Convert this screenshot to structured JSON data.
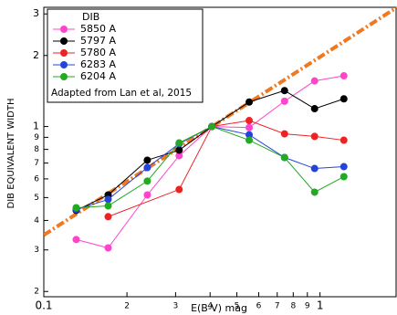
{
  "chart_data": {
    "type": "line",
    "x_label": "E(B-V) mag",
    "y_label": "DIB EQUIVALENT WIDTH",
    "log_x": true,
    "log_y": true,
    "xlim": [
      0.1,
      1.9
    ],
    "ylim": [
      0.19,
      3.2
    ],
    "xticks": [
      0.1,
      {
        "value": 0.2,
        "label": "2"
      },
      {
        "value": 0.3,
        "label": "3"
      },
      {
        "value": 0.4,
        "label": "4"
      },
      {
        "value": 0.5,
        "label": "5"
      },
      {
        "value": 0.6,
        "label": "6"
      },
      {
        "value": 0.7,
        "label": "7"
      },
      {
        "value": 0.8,
        "label": "8"
      },
      {
        "value": 0.9,
        "label": "9"
      },
      1
    ],
    "yticks": [
      3,
      2,
      1,
      {
        "value": 0.9,
        "label": "9"
      },
      {
        "value": 0.8,
        "label": "8"
      },
      {
        "value": 0.7,
        "label": "7"
      },
      {
        "value": 0.6,
        "label": "6"
      },
      {
        "value": 0.5,
        "label": "5"
      },
      {
        "value": 0.4,
        "label": "4"
      },
      {
        "value": 0.3,
        "label": "3"
      },
      {
        "value": 0.2,
        "label": "2"
      }
    ],
    "legend_title": "DIB",
    "legend_note": "Adapted from Lan et al, 2015",
    "legend_position": "upper left",
    "series": [
      {
        "name": "5850 A",
        "color": "#ff44cc",
        "x": [
          0.131,
          0.171,
          0.237,
          0.309,
          0.406,
          0.554,
          0.744,
          0.956,
          1.22
        ],
        "values": [
          0.332,
          0.306,
          0.513,
          0.752,
          1,
          0.99,
          1.28,
          1.56,
          1.64
        ]
      },
      {
        "name": "5797 A",
        "color": "#000000",
        "x": [
          0.131,
          0.171,
          0.237,
          0.309,
          0.406,
          0.554,
          0.744,
          0.956,
          1.22
        ],
        "values": [
          0.441,
          0.513,
          0.72,
          0.794,
          1,
          1.27,
          1.42,
          1.19,
          1.31
        ]
      },
      {
        "name": "5780 A",
        "color": "#ee2222",
        "x": [
          0.171,
          0.309,
          0.406,
          0.554,
          0.744,
          0.956,
          1.22
        ],
        "values": [
          0.415,
          0.541,
          1,
          1.06,
          0.931,
          0.908,
          0.875
        ]
      },
      {
        "name": "6283 A",
        "color": "#2244dd",
        "x": [
          0.131,
          0.171,
          0.237,
          0.309,
          0.406,
          0.554,
          0.744,
          0.956,
          1.22
        ],
        "values": [
          0.445,
          0.491,
          0.67,
          0.845,
          1,
          0.923,
          0.739,
          0.664,
          0.676
        ]
      },
      {
        "name": "6204 A",
        "color": "#22aa22",
        "x": [
          0.131,
          0.171,
          0.237,
          0.309,
          0.406,
          0.554,
          0.744,
          0.956,
          1.22
        ],
        "values": [
          0.453,
          0.461,
          0.587,
          0.852,
          1,
          0.875,
          0.739,
          0.527,
          0.613
        ]
      }
    ],
    "fit_line": {
      "color": "#f07820",
      "x": [
        0.1,
        1.9
      ],
      "values": [
        0.347,
        3.2
      ]
    }
  }
}
